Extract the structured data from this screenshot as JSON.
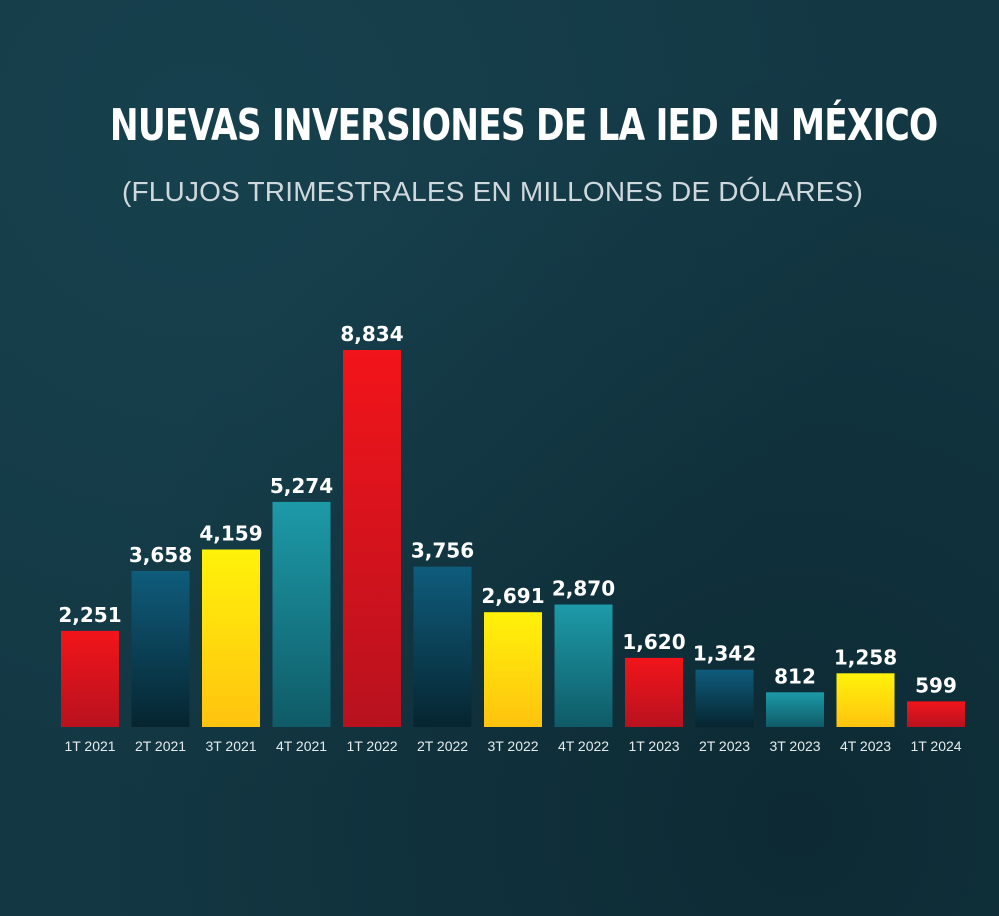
{
  "header": {
    "title": "NUEVAS INVERSIONES DE LA IED EN MÉXICO",
    "subtitle": "(FLUJOS TRIMESTRALES EN MILLONES DE DÓLARES)"
  },
  "colors": {
    "red": "#e8141c",
    "blue": "#0d5a78",
    "yellow": "#fde70a",
    "teal": "#1c97a6"
  },
  "chart_data": {
    "type": "bar",
    "title": "NUEVAS INVERSIONES DE LA IED EN MÉXICO",
    "subtitle": "(FLUJOS TRIMESTRALES EN MILLONES DE DÓLARES)",
    "xlabel": "",
    "ylabel": "",
    "grid": false,
    "legend": "none",
    "categories": [
      "1T 2021",
      "2T 2021",
      "3T 2021",
      "4T 2021",
      "1T 2022",
      "2T 2022",
      "3T 2022",
      "4T 2022",
      "1T 2023",
      "2T 2023",
      "3T 2023",
      "4T 2023",
      "1T 2024"
    ],
    "values": [
      2251,
      3658,
      4159,
      5274,
      8834,
      3756,
      2691,
      2870,
      1620,
      1342,
      812,
      1258,
      599
    ],
    "value_labels": [
      "2,251",
      "3,658",
      "4,159",
      "5,274",
      "8,834",
      "3,756",
      "2,691",
      "2,870",
      "1,620",
      "1,342",
      "812",
      "1,258",
      "599"
    ],
    "bar_colors": [
      "red",
      "blue",
      "yellow",
      "teal",
      "red",
      "blue",
      "yellow",
      "teal",
      "red",
      "blue",
      "teal",
      "yellow",
      "red"
    ]
  }
}
